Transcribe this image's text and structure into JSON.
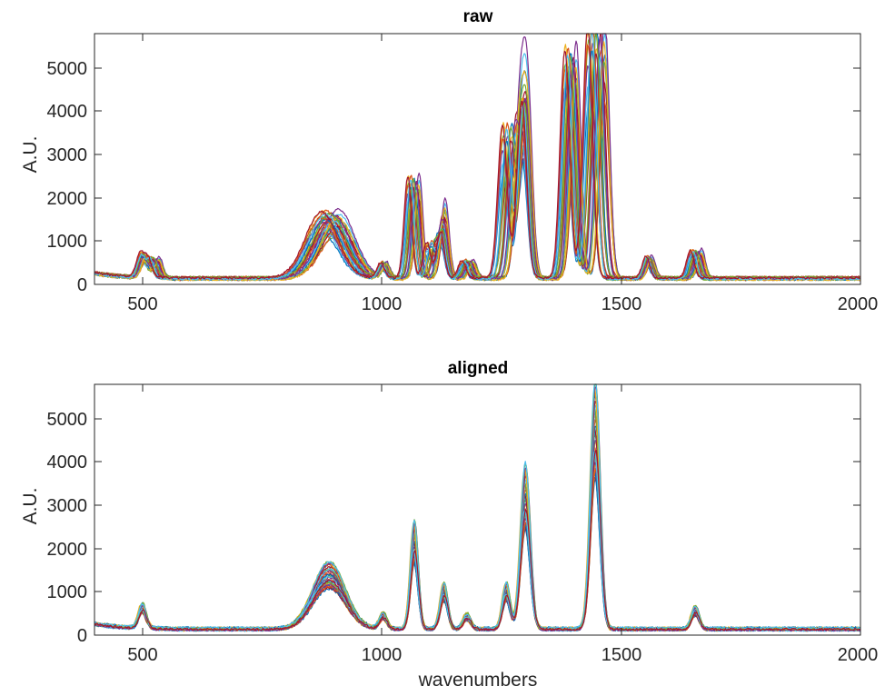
{
  "chart_data": [
    {
      "type": "line",
      "title": "raw",
      "xlabel": "",
      "ylabel": "A.U.",
      "xlim": [
        400,
        2000
      ],
      "ylim": [
        0,
        5800
      ],
      "xticks": [
        500,
        1000,
        1500,
        2000
      ],
      "yticks": [
        0,
        1000,
        2000,
        3000,
        4000,
        5000
      ],
      "grid": false,
      "series_count": 35,
      "peaks": [
        {
          "x": 500,
          "y": 450
        },
        {
          "x": 522,
          "y": 380
        },
        {
          "x": 890,
          "y": 1300
        },
        {
          "x": 1003,
          "y": 300
        },
        {
          "x": 1065,
          "y": 2000
        },
        {
          "x": 1110,
          "y": 700
        },
        {
          "x": 1128,
          "y": 900
        },
        {
          "x": 1178,
          "y": 350
        },
        {
          "x": 1268,
          "y": 3000
        },
        {
          "x": 1298,
          "y": 3500
        },
        {
          "x": 1393,
          "y": 4500
        },
        {
          "x": 1446,
          "y": 5000
        },
        {
          "x": 1557,
          "y": 430
        },
        {
          "x": 1655,
          "y": 550
        }
      ]
    },
    {
      "type": "line",
      "title": "aligned",
      "xlabel": "wavenumbers",
      "ylabel": "A.U.",
      "xlim": [
        400,
        2000
      ],
      "ylim": [
        0,
        5800
      ],
      "xticks": [
        500,
        1000,
        1500,
        2000
      ],
      "yticks": [
        0,
        1000,
        2000,
        3000,
        4000,
        5000
      ],
      "grid": false,
      "series_count": 35,
      "peaks": [
        {
          "x": 500,
          "y": 480
        },
        {
          "x": 890,
          "y": 1300
        },
        {
          "x": 1003,
          "y": 320
        },
        {
          "x": 1068,
          "y": 2100
        },
        {
          "x": 1130,
          "y": 900
        },
        {
          "x": 1178,
          "y": 300
        },
        {
          "x": 1260,
          "y": 900
        },
        {
          "x": 1300,
          "y": 3200
        },
        {
          "x": 1446,
          "y": 4800
        },
        {
          "x": 1655,
          "y": 450
        }
      ]
    }
  ],
  "palette": [
    "#0072BD",
    "#D95319",
    "#EDB120",
    "#7E2F8E",
    "#77AC30",
    "#4DBEEE",
    "#A2142F"
  ]
}
